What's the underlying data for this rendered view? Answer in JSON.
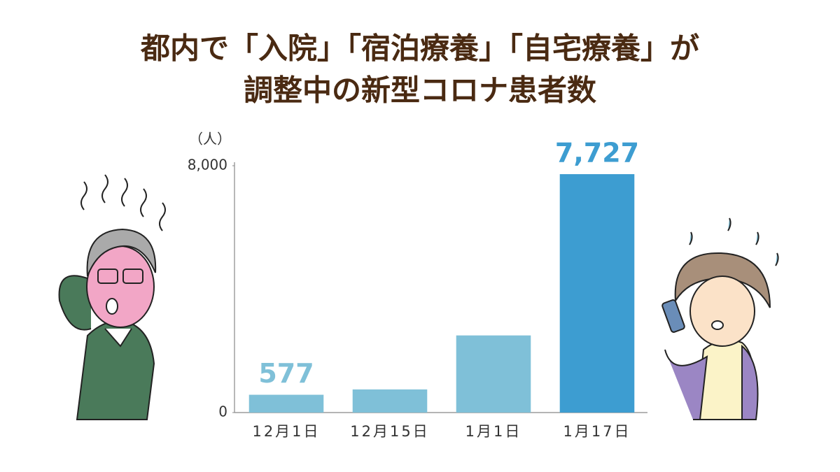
{
  "chart_data": {
    "type": "bar",
    "title": [
      "都内で「入院」「宿泊療養」「自宅療養」が",
      "調整中の新型コロナ患者数"
    ],
    "y_unit": "（人）",
    "categories": [
      "12月1日",
      "12月15日",
      "1月1日",
      "1月17日"
    ],
    "values": [
      577,
      750,
      2500,
      7727
    ],
    "value_labels": [
      "577",
      null,
      null,
      "7,727"
    ],
    "colors": [
      "#7fc0d8",
      "#7fc0d8",
      "#7fc0d8",
      "#3d9dd1"
    ],
    "ylim": [
      0,
      8000
    ],
    "yticks": [
      0,
      {
        "value": 8000,
        "label": "8,000"
      }
    ],
    "grid": false
  }
}
